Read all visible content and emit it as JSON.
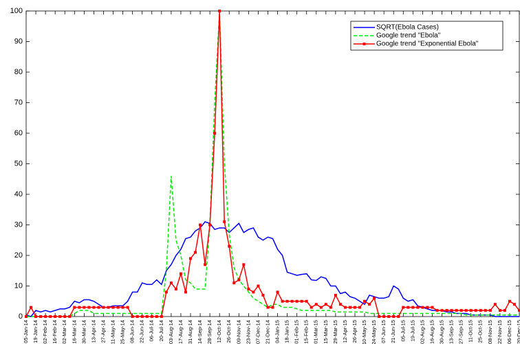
{
  "chart_data": {
    "type": "line",
    "categories": [
      "05-Jan-14",
      null,
      "19-Jan-14",
      null,
      "02-Feb-14",
      null,
      "16-Feb-14",
      null,
      "02-Mar-14",
      null,
      "16-Mar-14",
      null,
      "30-Mar-14",
      null,
      "13-Apr-14",
      null,
      "27-Apr-14",
      null,
      "11-May-14",
      null,
      "25-May-14",
      null,
      "08-Jun-14",
      null,
      "22-Jun-14",
      null,
      "06-Jul-14",
      null,
      "20-Jul-14",
      null,
      "03-Aug-14",
      null,
      "17-Aug-14",
      null,
      "31-Aug-14",
      null,
      "14-Sep-14",
      null,
      "28-Sep-14",
      null,
      "12-Oct-14",
      null,
      "26-Oct-14",
      null,
      "09-Nov-14",
      null,
      "23-Nov-14",
      null,
      "07-Dec-14",
      null,
      "21-Dec-14",
      null,
      "04-Jan-15",
      null,
      "18-Jan-15",
      null,
      "01-Feb-15",
      null,
      "15-Feb-15",
      null,
      "01-Mar-15",
      null,
      "15-Mar-15",
      null,
      "29-Mar-15",
      null,
      "12-Apr-15",
      null,
      "26-Apr-15",
      null,
      "10-May-15",
      null,
      "24-May-15",
      null,
      "07-Jun-15",
      null,
      "21-Jun-15",
      null,
      "05-Jul-15",
      null,
      "19-Jul-15",
      null,
      "02-Aug-15",
      null,
      "16-Aug-15",
      null,
      "30-Aug-15",
      null,
      "13-Sep-15",
      null,
      "27-Sep-15",
      null,
      "11-Oct-15",
      null,
      "25-Oct-15",
      null,
      "08-Nov-15",
      null,
      "22-Nov-15",
      null,
      "06-Dec-15",
      null,
      "20-Dec-15"
    ],
    "series": [
      {
        "name": "SQRT(Ebola Cases)",
        "color": "#0000ff",
        "dash": "solid",
        "marker": "none",
        "values": [
          0.5,
          0,
          2,
          1.5,
          2,
          1.5,
          2,
          2.5,
          2.5,
          3,
          5,
          4.5,
          5.5,
          5.5,
          5,
          4,
          3,
          3,
          3.5,
          3.5,
          3.5,
          5,
          8,
          8,
          11,
          10.5,
          10.5,
          12,
          10.5,
          15,
          17,
          20,
          22,
          25.5,
          26,
          28,
          29,
          31,
          30.5,
          28.5,
          29,
          29,
          27.5,
          29,
          30.5,
          27.5,
          28.5,
          29,
          26,
          25,
          26,
          25.5,
          22,
          20,
          14.5,
          14,
          13.5,
          13.8,
          14,
          12,
          11.8,
          13,
          12.5,
          10,
          10,
          7.5,
          8,
          6.5,
          6,
          5,
          4,
          7,
          6.5,
          6,
          6,
          6.5,
          10,
          9,
          6,
          5,
          5.5,
          3.5,
          3,
          2.5,
          2,
          2,
          2,
          1.5,
          1.5,
          1,
          1,
          1,
          0.5,
          0.5,
          0.5,
          0.5,
          0.5,
          0,
          0,
          0,
          0,
          0,
          0
        ]
      },
      {
        "name": "Google trend \"Ebola\"",
        "color": "#00ee00",
        "dash": "dashed",
        "marker": "none",
        "values": [
          0,
          0,
          0,
          0,
          0,
          0,
          0,
          0,
          0,
          0,
          1,
          2,
          2,
          2,
          1,
          1,
          1,
          1,
          1,
          1,
          1,
          1,
          1,
          1,
          1,
          1,
          1,
          1,
          1,
          15,
          46,
          25,
          20,
          12,
          11,
          9,
          9,
          9,
          30,
          70,
          100,
          50,
          27,
          16,
          12,
          10,
          8,
          6,
          5,
          4,
          3,
          4,
          4,
          3,
          3,
          3,
          2.5,
          2,
          2,
          2,
          2,
          2,
          2,
          2,
          1.5,
          1.5,
          1.5,
          1.5,
          1.5,
          1.5,
          1.5,
          1,
          1,
          1,
          1,
          1,
          1,
          1,
          1,
          1,
          1,
          1,
          1,
          1,
          1,
          1,
          1,
          1,
          1,
          1,
          1,
          0.5,
          0.5,
          0.5,
          0.5,
          0.5,
          0.5,
          0.5,
          0.5,
          0.5,
          0.5,
          0.5,
          0.5
        ]
      },
      {
        "name": "Google trend \"Exponential Ebola\"",
        "color": "#ff0000",
        "dash": "solid",
        "marker": "square",
        "values": [
          0,
          3,
          0,
          0,
          0,
          0,
          0,
          0,
          0,
          0,
          3,
          3,
          3,
          3,
          3,
          3,
          3,
          3,
          3,
          3,
          3,
          3,
          0,
          0,
          0,
          0,
          0,
          0,
          0,
          8,
          11,
          9,
          14,
          8,
          19,
          21,
          30,
          17,
          30,
          60,
          100,
          31,
          23,
          11,
          12,
          17,
          9,
          8,
          10,
          7,
          3,
          3,
          8,
          5,
          5,
          5,
          5,
          5,
          5,
          3,
          4,
          3,
          4,
          3,
          7,
          4,
          3,
          3,
          3,
          3,
          5,
          4,
          6,
          0,
          0,
          0,
          0,
          0,
          3,
          3,
          3,
          3,
          3,
          3,
          3,
          2,
          2,
          2,
          2,
          2,
          2,
          2,
          2,
          2,
          2,
          2,
          2,
          4,
          2,
          2,
          5,
          4,
          2
        ]
      }
    ],
    "ylim": [
      0,
      100
    ],
    "yticks": [
      0,
      10,
      20,
      30,
      40,
      50,
      60,
      70,
      80,
      90,
      100
    ],
    "grid": false,
    "legend": "upper right"
  }
}
